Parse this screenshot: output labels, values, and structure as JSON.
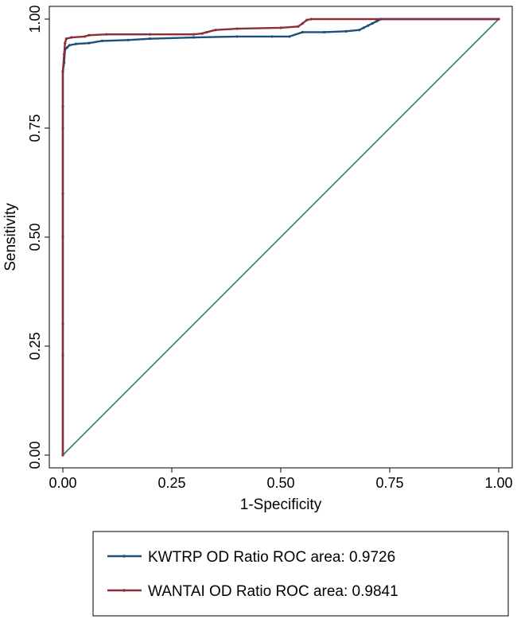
{
  "chart_data": {
    "type": "line",
    "title": "",
    "xlabel": "1-Specificity",
    "ylabel": "Sensitivity",
    "xlim": [
      0,
      1
    ],
    "ylim": [
      0,
      1
    ],
    "x_ticks": [
      "0.00",
      "0.25",
      "0.50",
      "0.75",
      "1.00"
    ],
    "y_ticks": [
      "0.00",
      "0.25",
      "0.50",
      "0.75",
      "1.00"
    ],
    "grid": false,
    "legend_position": "bottom",
    "series": [
      {
        "name": "KWTRP OD Ratio ROC area: 0.9726",
        "color": "#1f4e79",
        "points": [
          [
            0,
            0
          ],
          [
            0,
            0.3
          ],
          [
            0,
            0.6
          ],
          [
            0,
            0.8
          ],
          [
            0,
            0.88
          ],
          [
            0.003,
            0.9
          ],
          [
            0.005,
            0.93
          ],
          [
            0.01,
            0.935
          ],
          [
            0.015,
            0.94
          ],
          [
            0.03,
            0.943
          ],
          [
            0.06,
            0.945
          ],
          [
            0.09,
            0.95
          ],
          [
            0.15,
            0.952
          ],
          [
            0.2,
            0.955
          ],
          [
            0.3,
            0.958
          ],
          [
            0.4,
            0.96
          ],
          [
            0.48,
            0.96
          ],
          [
            0.52,
            0.96
          ],
          [
            0.55,
            0.97
          ],
          [
            0.6,
            0.97
          ],
          [
            0.65,
            0.972
          ],
          [
            0.68,
            0.975
          ],
          [
            0.69,
            0.98
          ],
          [
            0.7,
            0.985
          ],
          [
            0.71,
            0.99
          ],
          [
            0.72,
            0.995
          ],
          [
            0.73,
            1.0
          ],
          [
            1.0,
            1.0
          ]
        ]
      },
      {
        "name": "WANTAI OD Ratio ROC area: 0.9841",
        "color": "#8b2e3a",
        "points": [
          [
            0,
            0
          ],
          [
            0,
            0.23
          ],
          [
            0,
            0.5
          ],
          [
            0,
            0.75
          ],
          [
            0,
            0.88
          ],
          [
            0.003,
            0.92
          ],
          [
            0.005,
            0.945
          ],
          [
            0.008,
            0.955
          ],
          [
            0.02,
            0.958
          ],
          [
            0.05,
            0.96
          ],
          [
            0.06,
            0.963
          ],
          [
            0.1,
            0.965
          ],
          [
            0.2,
            0.965
          ],
          [
            0.3,
            0.965
          ],
          [
            0.32,
            0.967
          ],
          [
            0.33,
            0.97
          ],
          [
            0.35,
            0.975
          ],
          [
            0.4,
            0.978
          ],
          [
            0.5,
            0.98
          ],
          [
            0.54,
            0.983
          ],
          [
            0.55,
            0.99
          ],
          [
            0.56,
            0.998
          ],
          [
            0.57,
            1.0
          ],
          [
            1.0,
            1.0
          ]
        ]
      },
      {
        "name": "",
        "color": "#3b7a6b",
        "points": [
          [
            0,
            0
          ],
          [
            1,
            1
          ]
        ]
      }
    ]
  }
}
